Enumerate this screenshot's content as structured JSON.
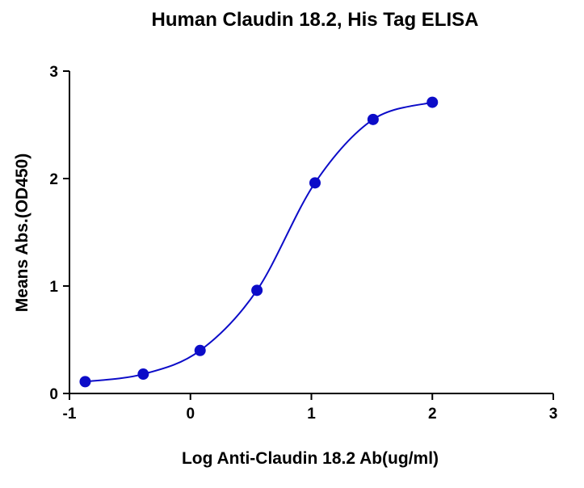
{
  "chart_data": {
    "type": "line",
    "title": "Human Claudin 18.2, His Tag ELISA",
    "x_label": "Log Anti-Claudin 18.2 Ab(ug/ml)",
    "y_label": "Means Abs.(OD450)",
    "x": [
      -0.87,
      -0.39,
      0.08,
      0.55,
      1.03,
      1.51,
      2.0
    ],
    "values": [
      0.11,
      0.18,
      0.4,
      0.96,
      1.96,
      2.55,
      2.71
    ],
    "color": "#0c0cc8",
    "xlim": [
      -1,
      3
    ],
    "xticks": [
      -1,
      0,
      1,
      2,
      3
    ],
    "ylim": [
      0,
      3
    ],
    "yticks": [
      0,
      1,
      2,
      3
    ]
  }
}
